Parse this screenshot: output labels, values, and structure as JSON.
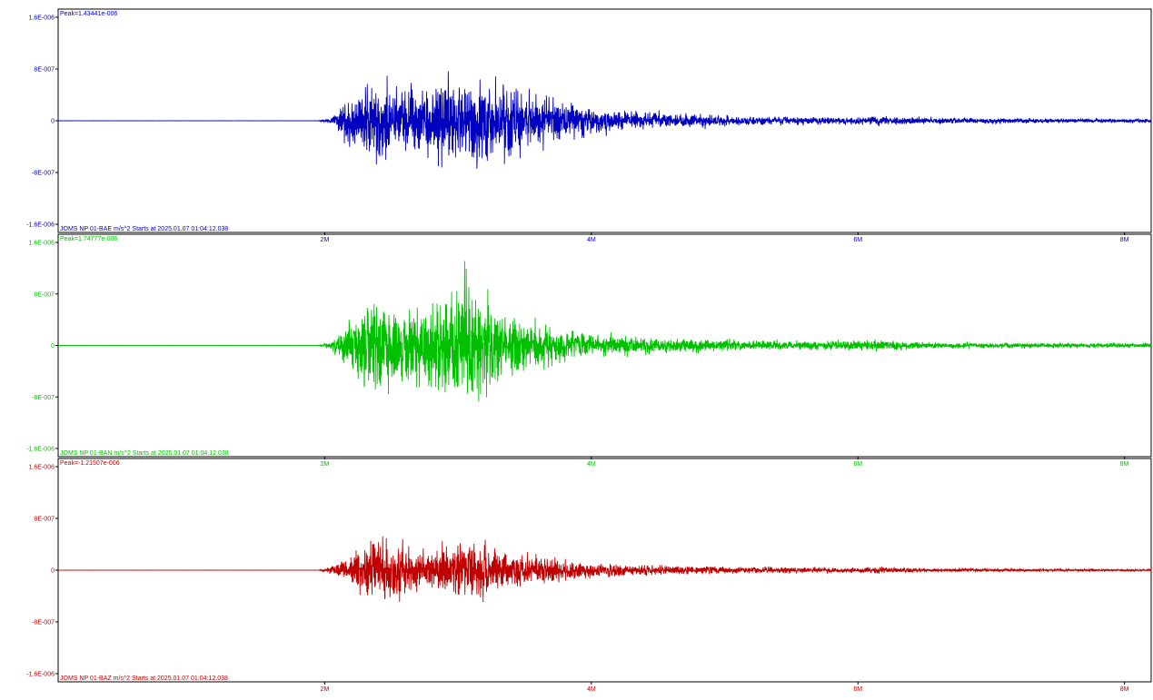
{
  "chart_data": {
    "type": "line",
    "x_ticks": [
      "2M",
      "4M",
      "6M",
      "8M"
    ],
    "x_tick_values": [
      2,
      4,
      6,
      8
    ],
    "xlim": [
      0,
      8.2
    ],
    "ylim": [
      -1.6e-06,
      1.6e-06
    ],
    "y_ticks": [
      "1.6E-006",
      "8E-007",
      "0",
      "-8E-007",
      "-1.6E-006"
    ],
    "y_tick_values": [
      1.6e-06,
      8e-07,
      0,
      -8e-07,
      -1.6e-06
    ],
    "grid": false,
    "channels": [
      {
        "peak_label": "Peak=1.43441e-006",
        "peak": 1.43441e-06,
        "info": "JOMS NP 01-BAE  m/s^2 Starts at 2025.01.07 01:04:12.038",
        "color": "#0000c0",
        "envelope": [
          [
            0,
            0.002
          ],
          [
            1.95,
            0.002
          ],
          [
            2.05,
            0.06
          ],
          [
            2.1,
            0.3
          ],
          [
            2.25,
            0.7
          ],
          [
            2.4,
            0.95
          ],
          [
            2.6,
            0.75
          ],
          [
            2.8,
            0.7
          ],
          [
            2.9,
            1.0
          ],
          [
            3.05,
            1.0
          ],
          [
            3.2,
            0.9
          ],
          [
            3.4,
            0.85
          ],
          [
            3.55,
            0.6
          ],
          [
            3.7,
            0.55
          ],
          [
            3.9,
            0.35
          ],
          [
            4.2,
            0.22
          ],
          [
            4.6,
            0.17
          ],
          [
            5.0,
            0.12
          ],
          [
            5.5,
            0.09
          ],
          [
            6.0,
            0.08
          ],
          [
            6.2,
            0.1
          ],
          [
            6.5,
            0.07
          ],
          [
            7.0,
            0.06
          ],
          [
            7.5,
            0.05
          ],
          [
            8.2,
            0.04
          ]
        ],
        "seed": 11
      },
      {
        "peak_label": "Peak=1.74777e-006",
        "peak": 1.74777e-06,
        "info": "JOMS NP 01-BAN  m/s^2 Starts at 2025.01.07 01:04:12.038",
        "color": "#00c000",
        "envelope": [
          [
            0,
            0.002
          ],
          [
            1.95,
            0.002
          ],
          [
            2.05,
            0.08
          ],
          [
            2.15,
            0.4
          ],
          [
            2.25,
            0.7
          ],
          [
            2.35,
            1.0
          ],
          [
            2.55,
            0.75
          ],
          [
            2.8,
            0.8
          ],
          [
            2.95,
            1.1
          ],
          [
            3.05,
            1.25
          ],
          [
            3.2,
            1.0
          ],
          [
            3.35,
            0.6
          ],
          [
            3.55,
            0.5
          ],
          [
            3.75,
            0.35
          ],
          [
            4.0,
            0.22
          ],
          [
            4.4,
            0.16
          ],
          [
            4.8,
            0.12
          ],
          [
            5.3,
            0.09
          ],
          [
            5.8,
            0.08
          ],
          [
            6.15,
            0.11
          ],
          [
            6.5,
            0.06
          ],
          [
            7.0,
            0.05
          ],
          [
            7.5,
            0.05
          ],
          [
            8.2,
            0.04
          ]
        ],
        "seed": 23
      },
      {
        "peak_label": "Peak=-1.21507e-006",
        "peak": -1.21507e-06,
        "info": "JOMS NP 01-BAZ  m/s^2 Starts at 2025.01.07 01:04:12.038",
        "color": "#c00000",
        "envelope": [
          [
            0,
            0.002
          ],
          [
            1.95,
            0.002
          ],
          [
            2.05,
            0.1
          ],
          [
            2.15,
            0.35
          ],
          [
            2.3,
            0.75
          ],
          [
            2.45,
            0.9
          ],
          [
            2.6,
            0.6
          ],
          [
            2.8,
            0.55
          ],
          [
            3.0,
            0.8
          ],
          [
            3.1,
            0.85
          ],
          [
            3.3,
            0.6
          ],
          [
            3.5,
            0.4
          ],
          [
            3.7,
            0.35
          ],
          [
            3.9,
            0.25
          ],
          [
            4.2,
            0.17
          ],
          [
            4.6,
            0.12
          ],
          [
            5.0,
            0.1
          ],
          [
            5.5,
            0.08
          ],
          [
            6.0,
            0.06
          ],
          [
            6.15,
            0.09
          ],
          [
            6.5,
            0.05
          ],
          [
            7.0,
            0.04
          ],
          [
            7.5,
            0.035
          ],
          [
            8.2,
            0.03
          ]
        ],
        "seed": 37
      }
    ]
  }
}
